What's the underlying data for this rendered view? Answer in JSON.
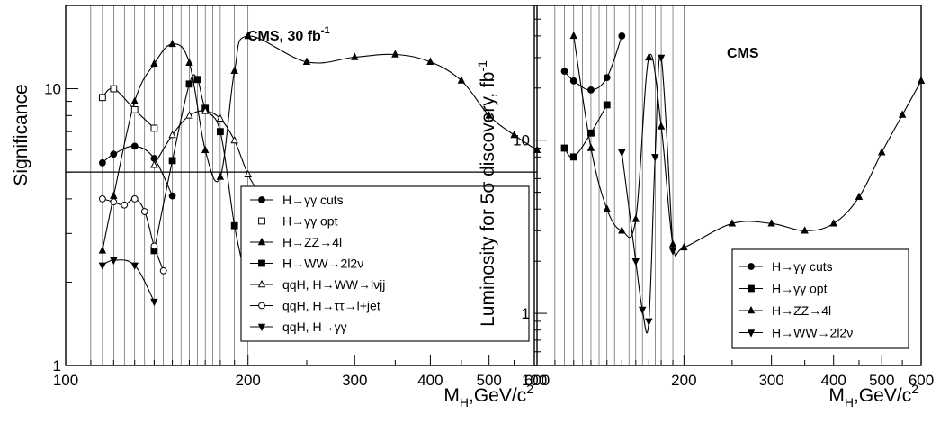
{
  "chart_data": [
    {
      "type": "line",
      "label": "CMS, 30 fb",
      "label_sup": "-1",
      "ylabel": "Significance",
      "xlabel": "M",
      "xlabel_sub": "H",
      "xlabel_unit": ",GeV/c",
      "xlabel_sup": "2",
      "xscale": "log",
      "yscale": "log",
      "xlim": [
        100,
        600
      ],
      "ylim": [
        1,
        20
      ],
      "xticks": [
        {
          "value": 100,
          "label": "100"
        },
        {
          "value": 200,
          "label": "200"
        },
        {
          "value": 300,
          "label": "300"
        },
        {
          "value": 400,
          "label": "400"
        },
        {
          "value": 500,
          "label": "500"
        },
        {
          "value": 600,
          "label": "600"
        }
      ],
      "yticks": [
        {
          "value": 1,
          "label": "1"
        },
        {
          "value": 10,
          "label": "10"
        }
      ],
      "vertical_grid_x": [
        110,
        115,
        120,
        125,
        130,
        135,
        140,
        145,
        150,
        155,
        160,
        165,
        170,
        175,
        180,
        190,
        200
      ],
      "horizontal_line_y": 5,
      "legend_position": "bottom-right",
      "series": [
        {
          "name": "H→γγ cuts",
          "marker": "circle-filled",
          "x": [
            115,
            120,
            130,
            140,
            150
          ],
          "y": [
            5.4,
            5.8,
            6.2,
            5.6,
            4.1
          ]
        },
        {
          "name": "H→γγ opt",
          "marker": "square-open",
          "x": [
            115,
            120,
            130,
            140
          ],
          "y": [
            9.3,
            10.0,
            8.4,
            7.2
          ]
        },
        {
          "name": "H→ZZ→4l",
          "marker": "triangle-up-filled",
          "x": [
            115,
            120,
            130,
            140,
            150,
            160,
            170,
            180,
            190,
            200,
            250,
            300,
            350,
            400,
            450,
            500,
            550,
            600
          ],
          "y": [
            2.6,
            4.1,
            9.0,
            12.3,
            14.5,
            12.4,
            6.0,
            4.8,
            11.6,
            15.5,
            12.5,
            13.0,
            13.3,
            12.5,
            10.7,
            8.0,
            6.8,
            6.0
          ]
        },
        {
          "name": "H→WW→2l2ν",
          "marker": "square-filled",
          "x": [
            140,
            150,
            160,
            165,
            170,
            180,
            190,
            200
          ],
          "y": [
            2.6,
            5.5,
            10.4,
            10.8,
            8.5,
            7.0,
            3.2,
            1.9
          ]
        },
        {
          "name": "qqH, H→WW→lνjj",
          "marker": "triangle-up-open",
          "x": [
            140,
            150,
            160,
            170,
            180,
            190,
            200,
            210,
            220
          ],
          "y": [
            5.3,
            6.8,
            8.0,
            8.3,
            7.8,
            6.5,
            4.9,
            4.1,
            3.4
          ]
        },
        {
          "name": "qqH, H→ττ→l+jet",
          "marker": "circle-open",
          "x": [
            115,
            120,
            125,
            130,
            135,
            140,
            145
          ],
          "y": [
            4.0,
            3.9,
            3.8,
            4.0,
            3.6,
            2.7,
            2.2
          ]
        },
        {
          "name": "qqH, H→γγ",
          "marker": "triangle-down-filled",
          "x": [
            115,
            120,
            130,
            140
          ],
          "y": [
            2.3,
            2.4,
            2.3,
            1.7
          ]
        }
      ]
    },
    {
      "type": "line",
      "label": "CMS",
      "ylabel": "Luminosity for 5σ discovery, fb",
      "ylabel_sup": "-1",
      "xlabel": "M",
      "xlabel_sub": "H",
      "xlabel_unit": ",GeV/c",
      "xlabel_sup": "2",
      "xscale": "log",
      "yscale": "log",
      "xlim": [
        100,
        600
      ],
      "ylim": [
        0.5,
        60
      ],
      "xticks": [
        {
          "value": 100,
          "label": "100"
        },
        {
          "value": 200,
          "label": "200"
        },
        {
          "value": 300,
          "label": "300"
        },
        {
          "value": 400,
          "label": "400"
        },
        {
          "value": 500,
          "label": "500"
        },
        {
          "value": 600,
          "label": "600"
        }
      ],
      "yticks": [
        {
          "value": 1,
          "label": "1"
        },
        {
          "value": 10,
          "label": "10"
        }
      ],
      "vertical_grid_x": [
        110,
        115,
        120,
        125,
        130,
        135,
        140,
        145,
        150,
        155,
        160,
        165,
        170,
        175,
        180,
        190,
        200
      ],
      "legend_position": "bottom-right",
      "series": [
        {
          "name": "H→γγ cuts",
          "marker": "circle-filled",
          "x": [
            115,
            120,
            130,
            140,
            150
          ],
          "y": [
            25,
            22,
            19.5,
            23,
            40
          ]
        },
        {
          "name": "H→γγ opt",
          "marker": "square-filled",
          "x": [
            115,
            120,
            130,
            140
          ],
          "y": [
            9,
            8,
            11,
            16
          ]
        },
        {
          "name": "H→ZZ→4l",
          "marker": "triangle-up-filled",
          "x": [
            120,
            130,
            140,
            150,
            160,
            170,
            180,
            190,
            200,
            250,
            300,
            350,
            400,
            450,
            500,
            550,
            600
          ],
          "y": [
            40,
            9,
            4,
            3,
            3.5,
            30,
            12,
            2.5,
            2.4,
            3.3,
            3.3,
            3.0,
            3.3,
            4.7,
            8.5,
            14,
            22
          ]
        },
        {
          "name": "H→WW→2l2ν",
          "marker": "triangle-down-filled",
          "x": [
            150,
            160,
            165,
            170,
            175,
            180,
            190
          ],
          "y": [
            8.5,
            2.0,
            1.05,
            0.9,
            8.0,
            30.0,
            2.3
          ]
        }
      ]
    }
  ]
}
